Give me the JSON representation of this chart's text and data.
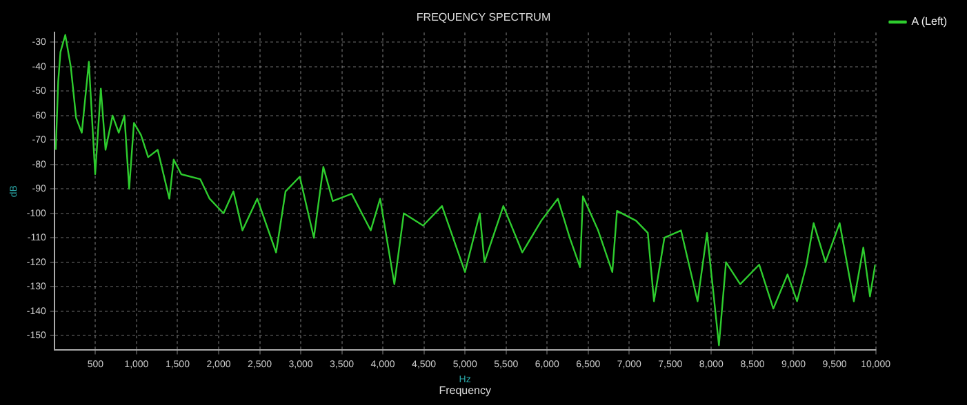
{
  "chart_data": {
    "type": "line",
    "title": "FREQUENCY SPECTRUM",
    "xlabel": "Hz",
    "ylabel": "dB",
    "annotations": [
      "Frequency"
    ],
    "xlim": [
      0,
      10000
    ],
    "xticks": [
      500,
      {
        "value": 1000,
        "label": "1,000"
      },
      {
        "value": 1500,
        "label": "1,500"
      },
      {
        "value": 2000,
        "label": "2,000"
      },
      {
        "value": 2500,
        "label": "2,500"
      },
      {
        "value": 3000,
        "label": "3,000"
      },
      {
        "value": 3500,
        "label": "3,500"
      },
      {
        "value": 4000,
        "label": "4,000"
      },
      {
        "value": 4500,
        "label": "4,500"
      },
      {
        "value": 5000,
        "label": "5,000"
      },
      {
        "value": 5500,
        "label": "5,500"
      },
      {
        "value": 6000,
        "label": "6,000"
      },
      {
        "value": 6500,
        "label": "6,500"
      },
      {
        "value": 7000,
        "label": "7,000"
      },
      {
        "value": 7500,
        "label": "7,500"
      },
      {
        "value": 8000,
        "label": "8,000"
      },
      {
        "value": 8500,
        "label": "8,500"
      },
      {
        "value": 9000,
        "label": "9,000"
      },
      {
        "value": 9500,
        "label": "9,500"
      },
      {
        "value": 10000,
        "label": "10,000"
      }
    ],
    "ylim": [
      -156,
      -26
    ],
    "yticks": [
      -150,
      -140,
      -130,
      -120,
      -110,
      -100,
      -90,
      -80,
      -70,
      -60,
      -50,
      -40,
      -30
    ],
    "grid": true,
    "legend": "top right",
    "marker": "none",
    "line_style": "solid",
    "series": [
      {
        "name": "A (Left)",
        "color": "#2ecc2e",
        "x": [
          17,
          47,
          74,
          133,
          200,
          265,
          334,
          420,
          497,
          566,
          623,
          709,
          784,
          853,
          911,
          969,
          1055,
          1142,
          1258,
          1400,
          1453,
          1545,
          1776,
          1890,
          2060,
          2180,
          2290,
          2470,
          2700,
          2815,
          2988,
          3160,
          3275,
          3390,
          3620,
          3852,
          3967,
          4140,
          4255,
          4490,
          4720,
          5000,
          5180,
          5237,
          5467,
          5698,
          5929,
          6130,
          6275,
          6401,
          6436,
          6621,
          6794,
          6851,
          7082,
          7226,
          7301,
          7428,
          7630,
          7832,
          7947,
          8092,
          8178,
          8351,
          8582,
          8754,
          8927,
          9043,
          9158,
          9245,
          9389,
          9562,
          9735,
          9850,
          9931,
          9995
        ],
        "values": [
          -74,
          -46,
          -34,
          -27,
          -40,
          -61,
          -67,
          -38,
          -84,
          -49,
          -74,
          -60,
          -67,
          -60,
          -90,
          -63,
          -68,
          -77,
          -74,
          -94,
          -78,
          -84,
          -86,
          -94,
          -100,
          -91,
          -107,
          -94,
          -116,
          -91,
          -85,
          -110,
          -81,
          -95,
          -92,
          -107,
          -94,
          -129,
          -100,
          -105,
          -97,
          -124,
          -100,
          -120,
          -97,
          -116,
          -103,
          -94,
          -110,
          -122,
          -93,
          -107,
          -124,
          -99,
          -103,
          -108,
          -136,
          -110,
          -107,
          -136,
          -108,
          -154,
          -120,
          -129,
          -121,
          -139,
          -125,
          -136,
          -121,
          -104,
          -120,
          -104,
          -136,
          -114,
          -134,
          -121
        ]
      }
    ]
  }
}
